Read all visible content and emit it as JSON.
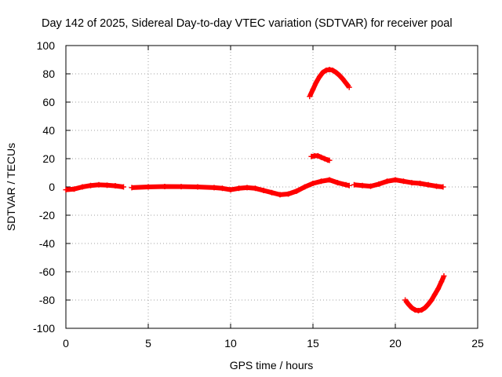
{
  "chart_data": {
    "type": "scatter",
    "title": "Day 142 of 2025, Sidereal Day-to-day VTEC variation (SDTVAR) for receiver poal",
    "xlabel": "GPS time / hours",
    "ylabel": "SDTVAR / TECUs",
    "xlim": [
      0,
      25
    ],
    "ylim": [
      -100,
      100
    ],
    "xticks": [
      0,
      5,
      10,
      15,
      20,
      25
    ],
    "yticks": [
      -100,
      -80,
      -60,
      -40,
      -20,
      0,
      20,
      40,
      60,
      80,
      100
    ],
    "grid": true,
    "legend": "none",
    "color": "#ff0000",
    "series": [
      {
        "name": "main trace",
        "segments": [
          {
            "x": [
              0.0,
              0.5,
              1.0,
              1.5,
              2.0,
              2.5,
              3.0,
              3.5
            ],
            "y": [
              -2.0,
              -1.5,
              0.0,
              1.0,
              1.5,
              1.2,
              0.8,
              0.0
            ]
          },
          {
            "x": [
              4.0,
              5.0,
              6.0,
              7.0,
              8.0,
              9.0,
              9.5,
              10.0,
              10.5,
              11.0,
              11.5,
              12.0,
              12.5,
              13.0,
              13.5,
              14.0,
              14.5,
              15.0,
              15.5,
              16.0,
              16.5,
              17.0,
              17.2
            ],
            "y": [
              -0.5,
              0.0,
              0.3,
              0.2,
              0.0,
              -0.5,
              -1.0,
              -2.0,
              -1.0,
              -0.5,
              -1.0,
              -2.5,
              -4.0,
              -5.5,
              -5.0,
              -3.0,
              0.0,
              2.5,
              4.0,
              5.0,
              3.0,
              1.5,
              1.0
            ]
          },
          {
            "x": [
              17.5,
              18.0,
              18.5,
              19.0,
              19.5,
              20.0,
              20.5,
              21.0,
              21.5,
              22.0,
              22.5,
              22.9
            ],
            "y": [
              1.5,
              1.0,
              0.5,
              2.0,
              4.0,
              5.0,
              4.0,
              3.0,
              2.5,
              1.5,
              0.5,
              0.0
            ]
          }
        ]
      },
      {
        "name": "upper arc",
        "segments": [
          {
            "x": [
              14.8,
              15.0,
              15.2,
              15.4,
              15.6,
              15.8,
              16.0,
              16.2,
              16.4,
              16.6,
              16.8,
              17.0,
              17.2
            ],
            "y": [
              64,
              69,
              74,
              78,
              81,
              82.5,
              83,
              82.5,
              81,
              79,
              76.5,
              73.5,
              70.5
            ]
          }
        ]
      },
      {
        "name": "small arc",
        "segments": [
          {
            "x": [
              14.9,
              15.1,
              15.3,
              15.5,
              15.7,
              15.9,
              16.0
            ],
            "y": [
              21.5,
              22,
              22,
              21,
              20,
              19,
              18.8
            ]
          }
        ]
      },
      {
        "name": "lower arc",
        "segments": [
          {
            "x": [
              20.6,
              20.8,
              21.0,
              21.2,
              21.4,
              21.6,
              21.8,
              22.0,
              22.2,
              22.4,
              22.6,
              22.8,
              22.95
            ],
            "y": [
              -80,
              -83,
              -85.5,
              -87,
              -87.5,
              -87,
              -85.5,
              -83,
              -80,
              -76,
              -72,
              -67,
              -63
            ]
          }
        ]
      }
    ]
  }
}
